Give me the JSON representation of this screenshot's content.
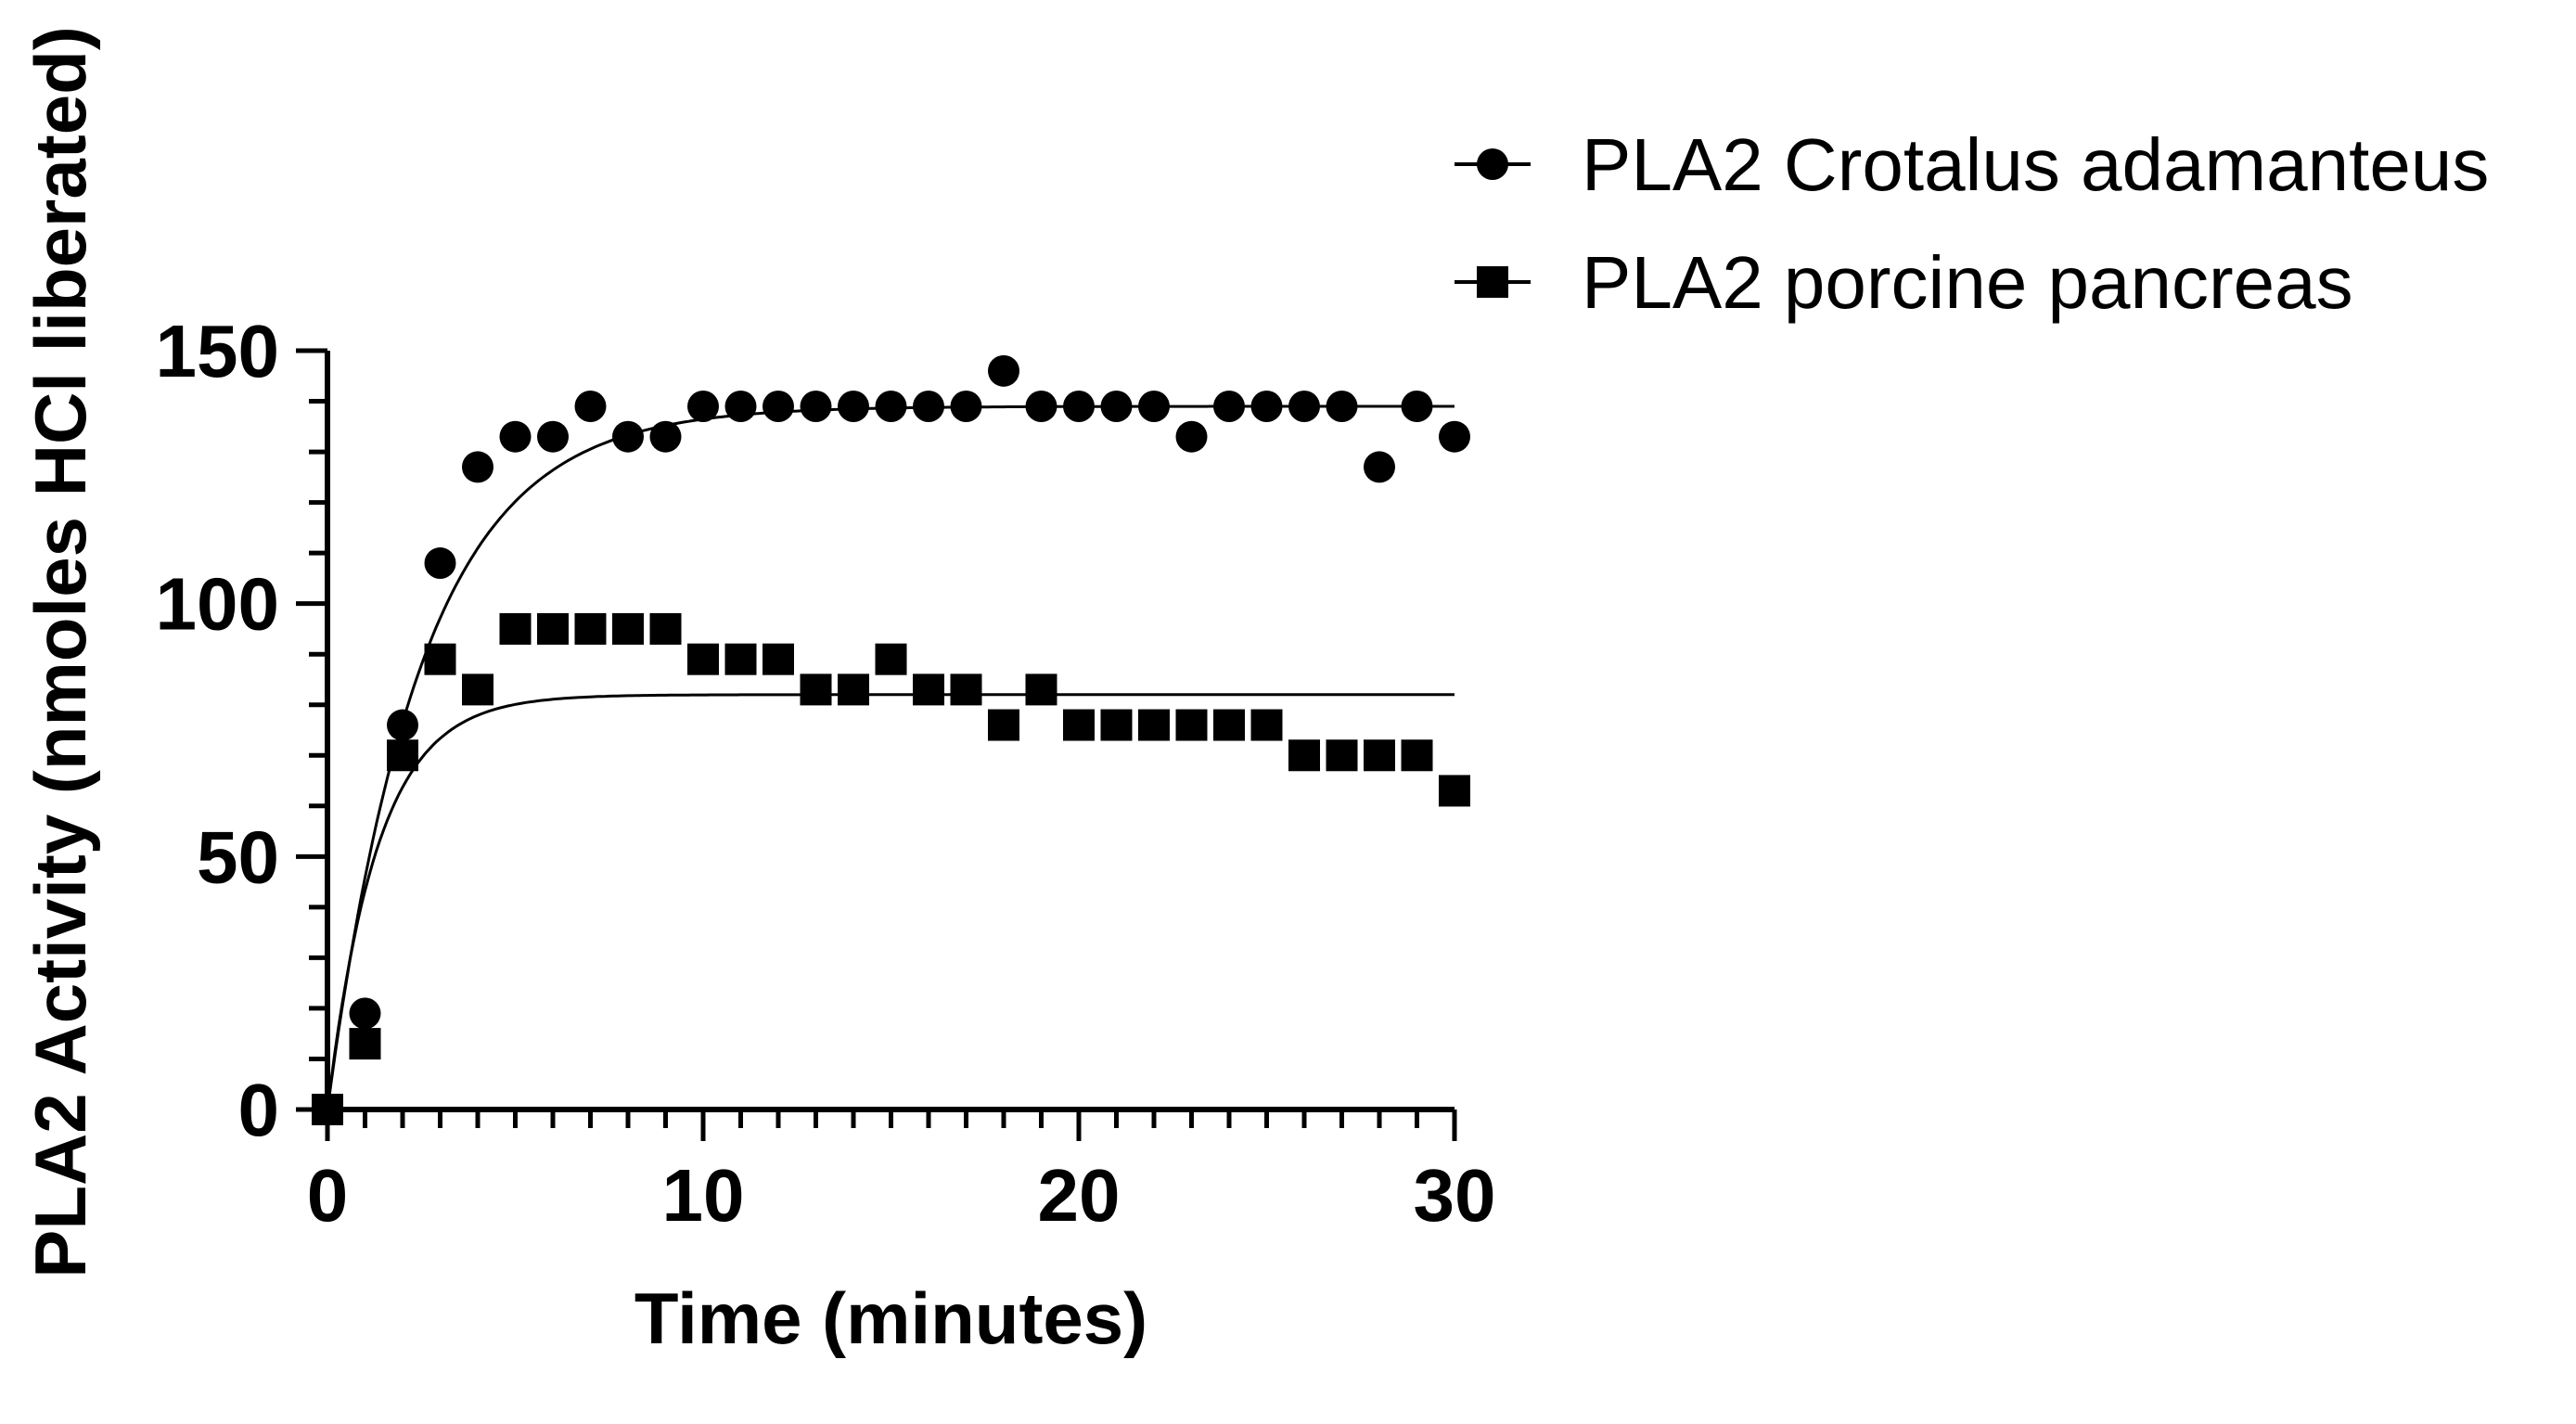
{
  "chart_data": {
    "type": "scatter",
    "xlabel": "Time (minutes)",
    "ylabel": "PLA2 Activity (nmoles HCl liberated)",
    "xlim": [
      0,
      30
    ],
    "ylim": [
      0,
      150
    ],
    "xticks": [
      "0",
      "10",
      "20",
      "30"
    ],
    "yticks": [
      "0",
      "50",
      "100",
      "150"
    ],
    "grid": false,
    "legend_position": "top-right",
    "series": [
      {
        "name": "PLA2 Crotalus adamanteus",
        "marker": "circle",
        "color": "#000000",
        "x": [
          0,
          1,
          2,
          3,
          4,
          5,
          6,
          7,
          8,
          9,
          10,
          11,
          12,
          13,
          14,
          15,
          16,
          17,
          18,
          19,
          20,
          21,
          22,
          23,
          24,
          25,
          26,
          27,
          28,
          29,
          30
        ],
        "y": [
          0,
          19,
          76,
          108,
          127,
          133,
          133,
          139,
          133,
          133,
          139,
          139,
          139,
          139,
          139,
          139,
          139,
          139,
          146,
          139,
          139,
          139,
          139,
          133,
          139,
          139,
          139,
          139,
          127,
          139,
          133
        ],
        "fit": {
          "model": "one-phase association",
          "plateau": 139,
          "k": 0.4
        }
      },
      {
        "name": "PLA2 porcine pancreas",
        "marker": "square",
        "color": "#000000",
        "x": [
          0,
          1,
          2,
          3,
          4,
          5,
          6,
          7,
          8,
          9,
          10,
          11,
          12,
          13,
          14,
          15,
          16,
          17,
          18,
          19,
          20,
          21,
          22,
          23,
          24,
          25,
          26,
          27,
          28,
          29,
          30
        ],
        "y": [
          0,
          13,
          70,
          89,
          83,
          95,
          95,
          95,
          95,
          95,
          89,
          89,
          89,
          83,
          83,
          89,
          83,
          83,
          76,
          83,
          76,
          76,
          76,
          76,
          76,
          76,
          70,
          70,
          70,
          70,
          63
        ],
        "fit": {
          "model": "one-phase association",
          "plateau": 82,
          "k": 0.75
        }
      }
    ]
  }
}
